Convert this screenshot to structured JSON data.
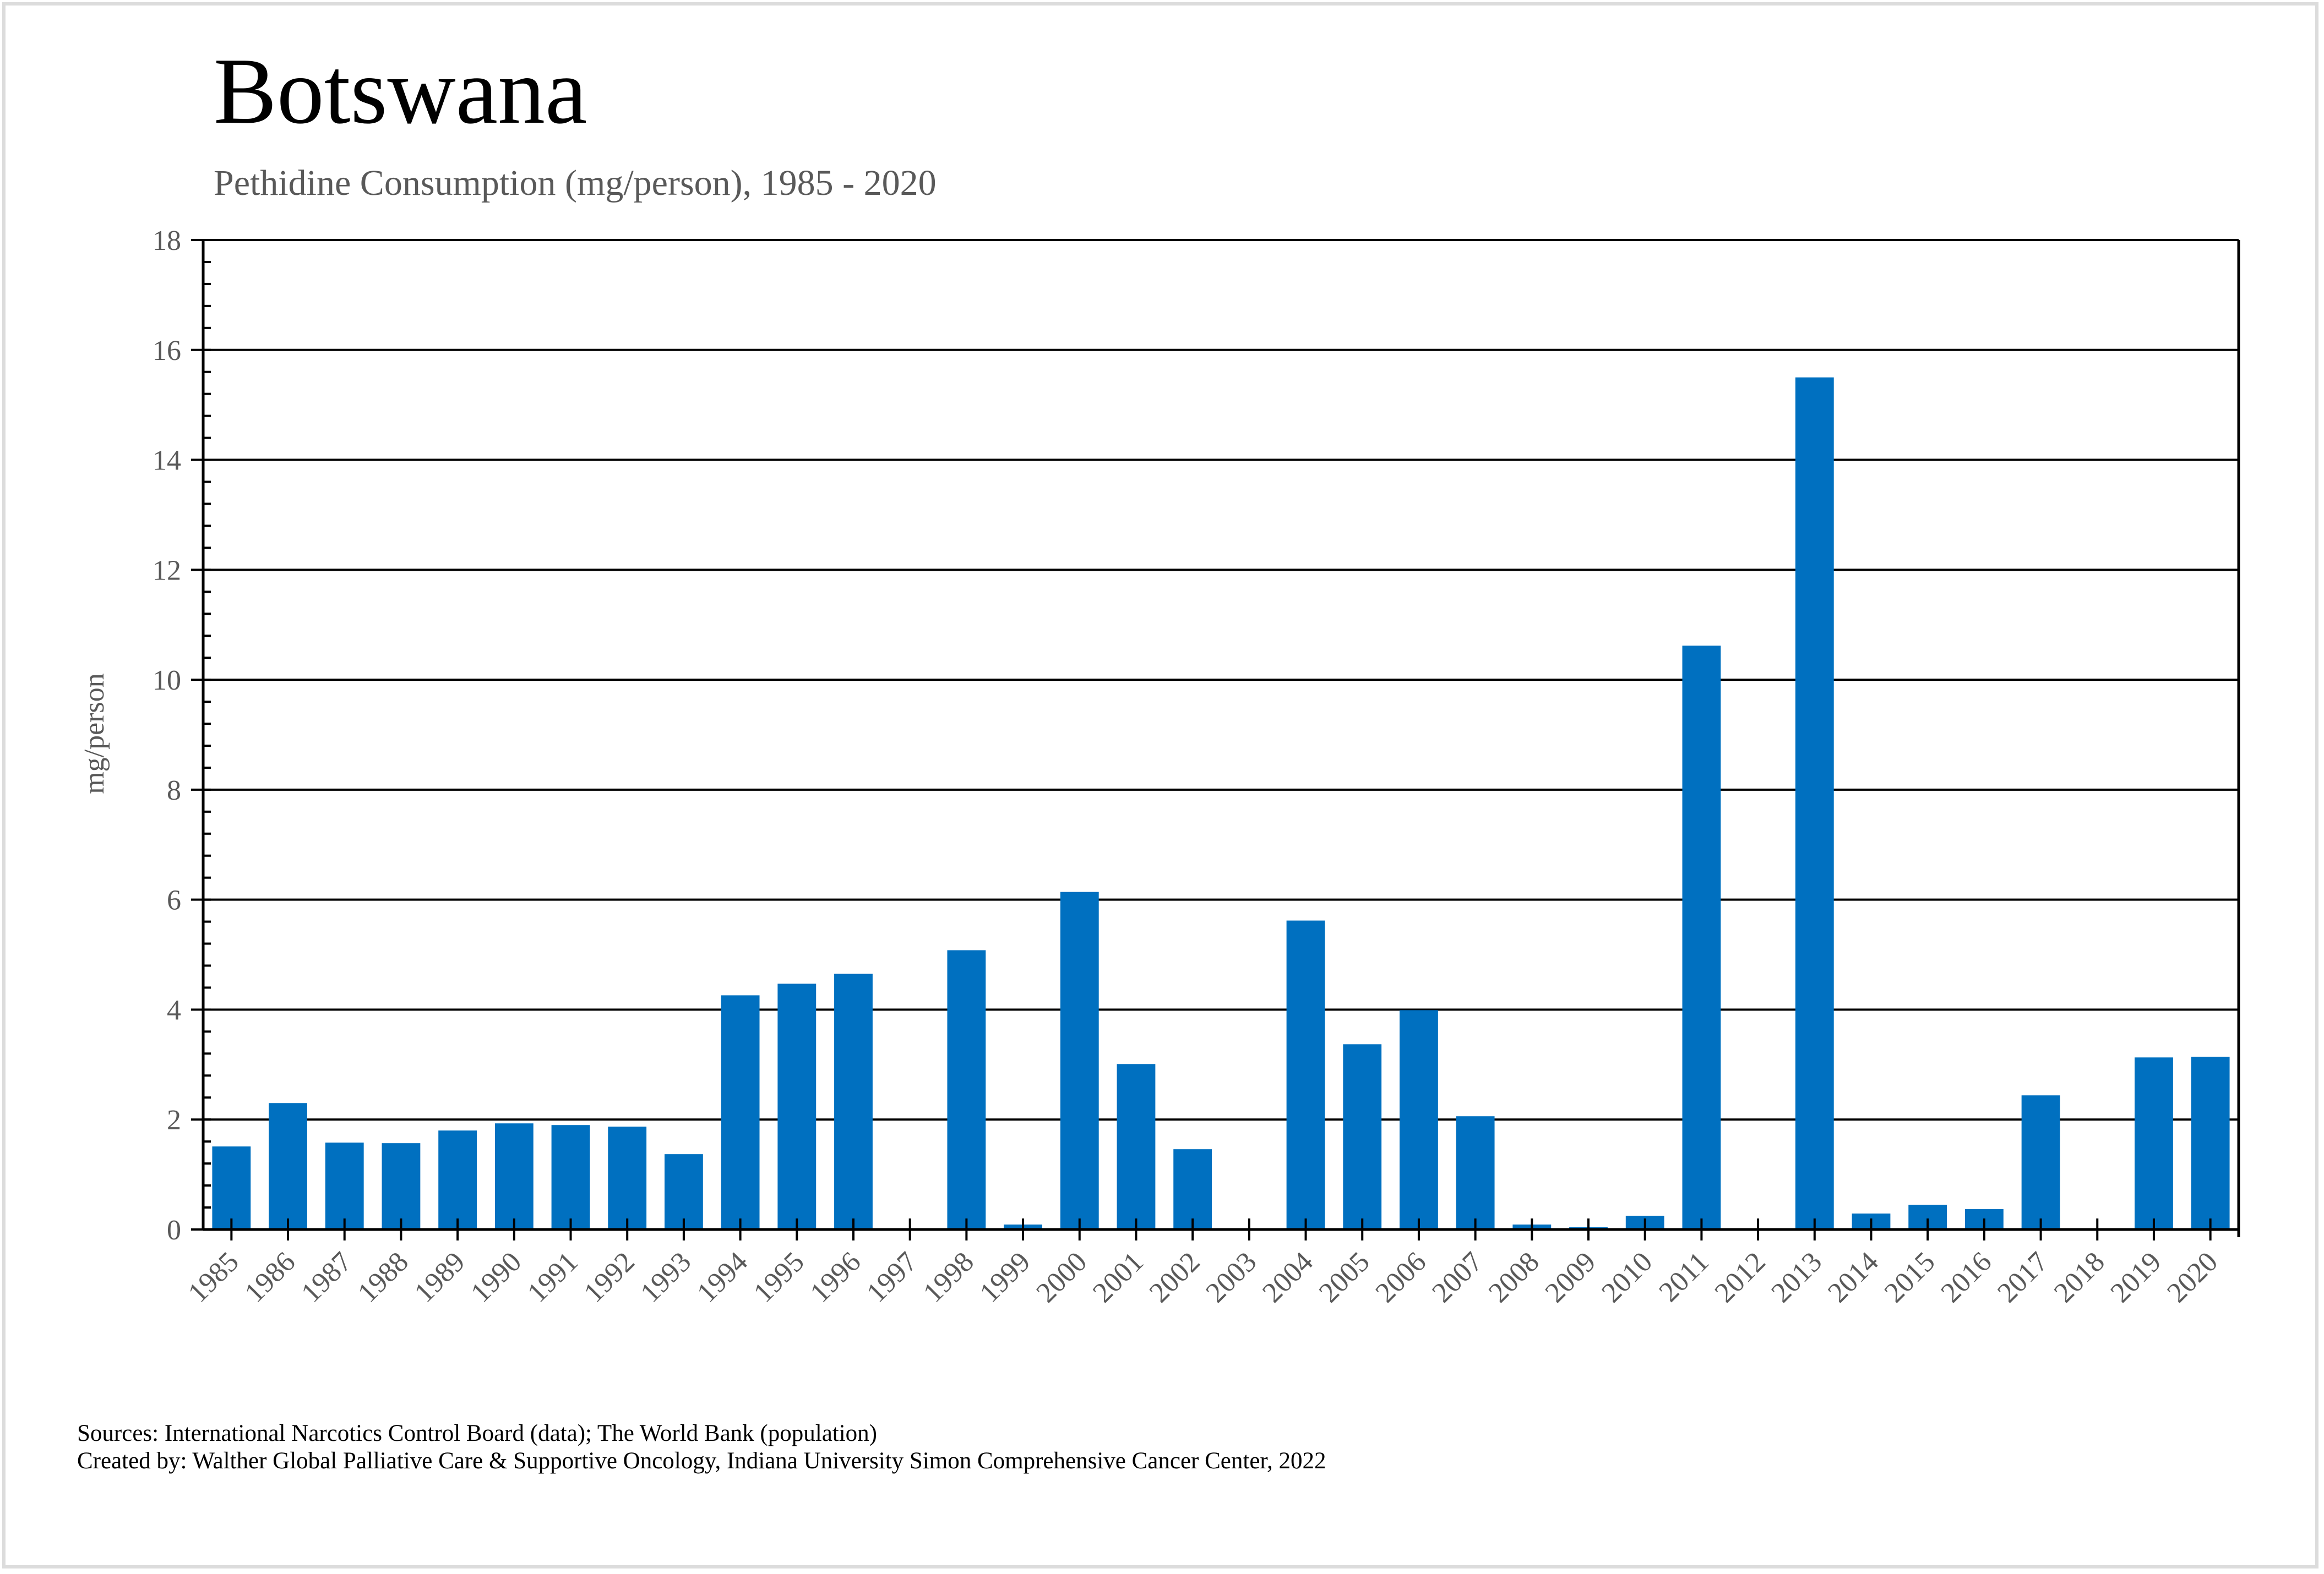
{
  "title": "Botswana",
  "subtitle": "Pethidine Consumption (mg/person), 1985 - 2020",
  "footer": {
    "sources": "Sources: International Narcotics Control Board (data); The World Bank (population)",
    "created_by": "Created by: Walther Global Palliative Care & Supportive Oncology, Indiana University Simon Comprehensive Cancer Center, 2022"
  },
  "colors": {
    "bar": "#0070C0",
    "grid": "#000000",
    "text": "#595959",
    "frame": "#dcdcdc"
  },
  "chart_data": {
    "type": "bar",
    "title": "Botswana",
    "subtitle": "Pethidine Consumption (mg/person), 1985 - 2020",
    "xlabel": "",
    "ylabel": "mg/person",
    "ylim": [
      0,
      18
    ],
    "yticks": [
      0,
      2,
      4,
      6,
      8,
      10,
      12,
      14,
      16,
      18
    ],
    "ytick_labels": [
      "0",
      "2",
      "4",
      "6",
      "8",
      "10",
      "12",
      "14",
      "16",
      "18"
    ],
    "grid": true,
    "legend": "none",
    "categories": [
      "1985",
      "1986",
      "1987",
      "1988",
      "1989",
      "1990",
      "1991",
      "1992",
      "1993",
      "1994",
      "1995",
      "1996",
      "1997",
      "1998",
      "1999",
      "2000",
      "2001",
      "2002",
      "2003",
      "2004",
      "2005",
      "2006",
      "2007",
      "2008",
      "2009",
      "2010",
      "2011",
      "2012",
      "2013",
      "2014",
      "2015",
      "2016",
      "2017",
      "2018",
      "2019",
      "2020"
    ],
    "values": [
      1.51,
      2.3,
      1.58,
      1.57,
      1.8,
      1.93,
      1.9,
      1.87,
      1.37,
      4.26,
      4.47,
      4.65,
      0,
      5.08,
      0.09,
      6.14,
      3.01,
      1.46,
      0,
      5.62,
      3.37,
      3.99,
      2.06,
      0.09,
      0.04,
      0.25,
      10.62,
      0,
      15.5,
      0.29,
      0.45,
      0.37,
      2.44,
      0,
      3.13,
      3.14
    ]
  }
}
